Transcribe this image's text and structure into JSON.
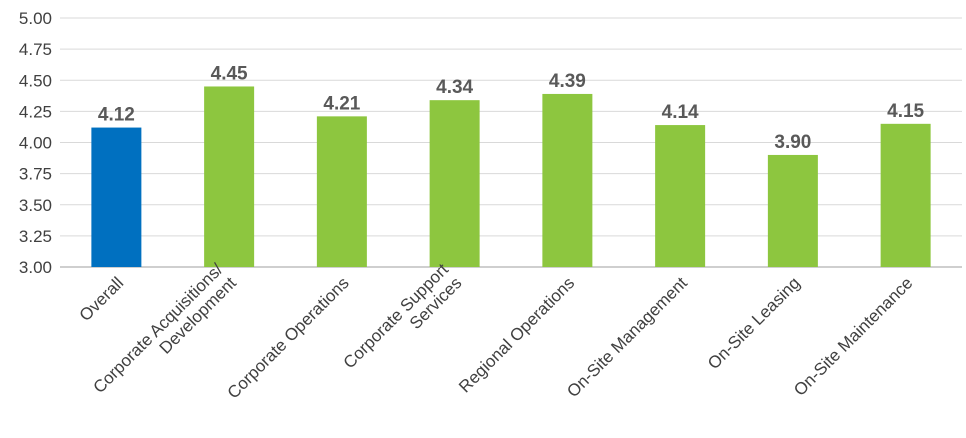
{
  "chart_data": {
    "type": "bar",
    "title": "",
    "xlabel": "",
    "ylabel": "",
    "ylim": [
      3.0,
      5.0
    ],
    "yticks": [
      "3.00",
      "3.25",
      "3.50",
      "3.75",
      "4.00",
      "4.25",
      "4.50",
      "4.75",
      "5.00"
    ],
    "grid": true,
    "legend": "none",
    "categories": [
      [
        "Overall"
      ],
      [
        "Corporate Acquisitions/",
        "Development"
      ],
      [
        "Corporate Operations"
      ],
      [
        "Corporate Support",
        "Services"
      ],
      [
        "Regional Operations"
      ],
      [
        "On-Site Management"
      ],
      [
        "On-Site Leasing"
      ],
      [
        "On-Site Maintenance"
      ]
    ],
    "values": [
      4.12,
      4.45,
      4.21,
      4.34,
      4.39,
      4.14,
      3.9,
      4.15
    ],
    "value_labels": [
      "4.12",
      "4.45",
      "4.21",
      "4.34",
      "4.39",
      "4.14",
      "3.90",
      "4.15"
    ],
    "colors": [
      "#0070c0",
      "#8dc63f",
      "#8dc63f",
      "#8dc63f",
      "#8dc63f",
      "#8dc63f",
      "#8dc63f",
      "#8dc63f"
    ],
    "gridline_color": "#d9d9d9"
  }
}
